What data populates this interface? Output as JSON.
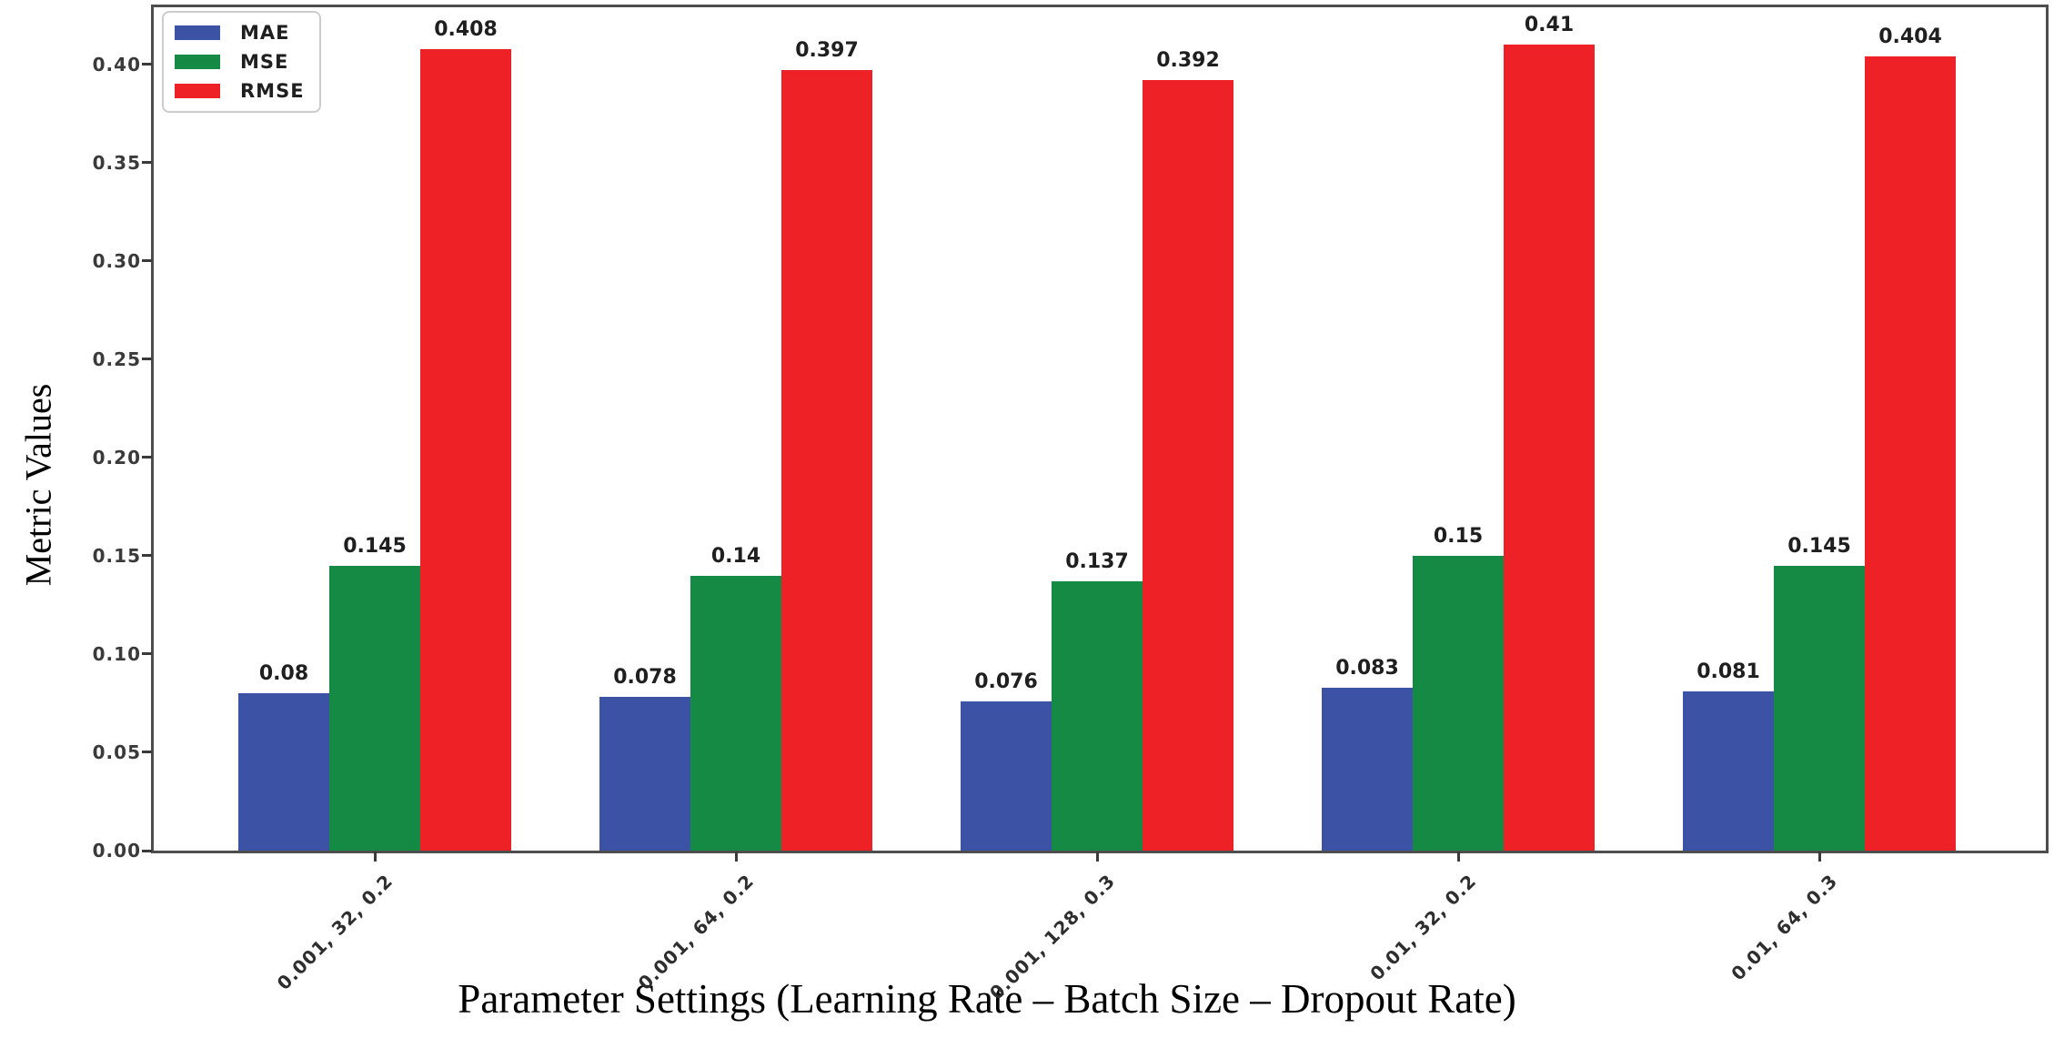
{
  "chart_data": {
    "type": "bar",
    "title": "",
    "xlabel": "Parameter Settings (Learning Rate – Batch Size – Dropout Rate)",
    "ylabel": "Metric Values",
    "categories": [
      "0.001, 32, 0.2",
      "0.001, 64, 0.2",
      "0.001, 128, 0.3",
      "0.01, 32, 0.2",
      "0.01, 64, 0.3"
    ],
    "series": [
      {
        "name": "MAE",
        "color": "#3C52A4",
        "values": [
          0.08,
          0.078,
          0.076,
          0.083,
          0.081
        ],
        "labels": [
          "0.08",
          "0.078",
          "0.076",
          "0.083",
          "0.081"
        ]
      },
      {
        "name": "MSE",
        "color": "#148A45",
        "values": [
          0.145,
          0.14,
          0.137,
          0.15,
          0.145
        ],
        "labels": [
          "0.145",
          "0.14",
          "0.137",
          "0.15",
          "0.145"
        ]
      },
      {
        "name": "RMSE",
        "color": "#EE2127",
        "values": [
          0.408,
          0.397,
          0.392,
          0.41,
          0.404
        ],
        "labels": [
          "0.408",
          "0.397",
          "0.392",
          "0.41",
          "0.404"
        ]
      }
    ],
    "y_ticks": [
      "0.00",
      "0.05",
      "0.10",
      "0.15",
      "0.20",
      "0.25",
      "0.30",
      "0.35",
      "0.40"
    ],
    "y_tick_step": 0.05,
    "ylim": [
      0,
      0.43
    ],
    "grid": false,
    "legend_position": "upper-left",
    "axis_color": "#4d4d4d"
  }
}
